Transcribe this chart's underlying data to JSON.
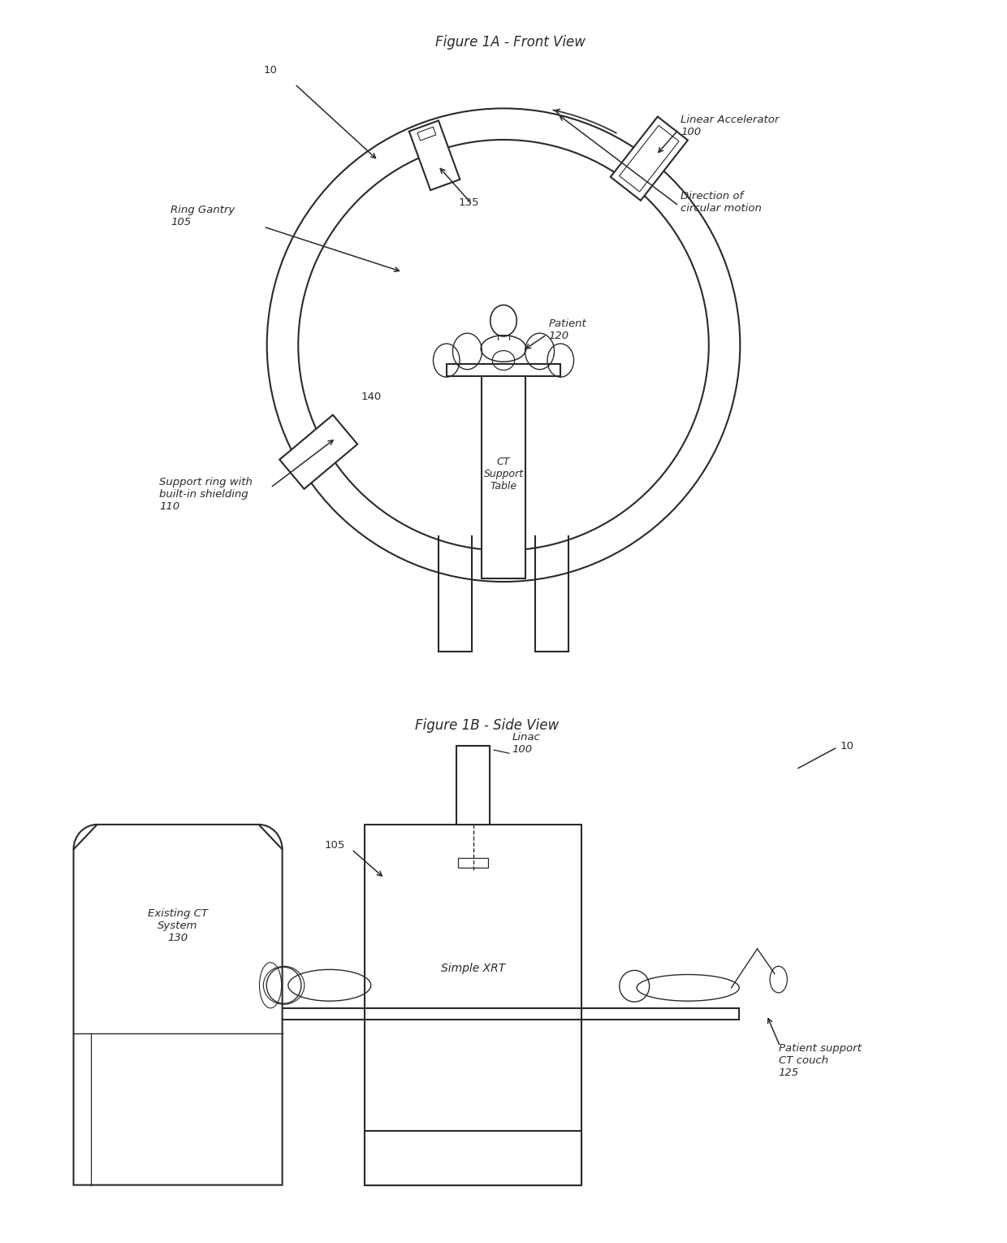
{
  "bg_color": "#ffffff",
  "line_color": "#2a2a2a",
  "fig_title_1a": "Figure 1A - Front View",
  "fig_title_1b": "Figure 1B - Side View",
  "label_10_1a": "10",
  "label_ring_gantry": "Ring Gantry\n105",
  "label_135": "135",
  "label_linear_acc": "Linear Accelerator\n100",
  "label_dir_circ": "Direction of\ncircular motion",
  "label_patient": "Patient\n120",
  "label_140": "140",
  "label_support_ring": "Support ring with\nbuilt-in shielding\n110",
  "label_ct_support": "CT\nSupport\nTable",
  "label_linac": "Linac\n100",
  "label_10_1b": "10",
  "label_105_1b": "105",
  "label_existing_ct": "Existing CT\nSystem\n130",
  "label_simple_xrt": "Simple XRT",
  "label_patient_support": "Patient support\nCT couch\n125",
  "font_size_title": 12,
  "font_size_label": 9.5,
  "font_size_small": 9
}
